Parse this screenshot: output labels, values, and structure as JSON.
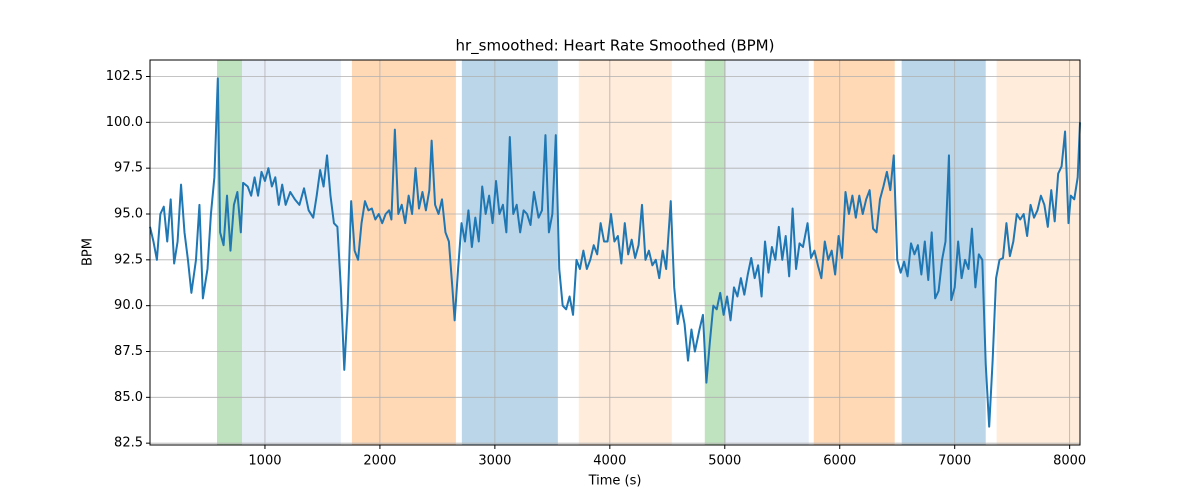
{
  "chart_data": {
    "type": "line",
    "title": "hr_smoothed: Heart Rate Smoothed (BPM)",
    "x_label": "Time (s)",
    "y_label": "BPM",
    "color": "#1f77b4",
    "grid": true,
    "xlim": [
      0,
      8090
    ],
    "ylim": [
      82.4,
      103.4
    ],
    "xticks": [
      1000,
      2000,
      3000,
      4000,
      5000,
      6000,
      7000,
      8000
    ],
    "yticks": [
      82.5,
      {
        "value": 85,
        "label": "85.0"
      },
      87.5,
      {
        "value": 90,
        "label": "90.0"
      },
      92.5,
      {
        "value": 95,
        "label": "95.0"
      },
      97.5,
      {
        "value": 100,
        "label": "100.0"
      },
      102.5
    ],
    "regions": [
      {
        "start": 583,
        "end": 800,
        "color": "#2ca02c",
        "alpha": 0.3
      },
      {
        "start": 800,
        "end": 1660,
        "color": "#aec7e8",
        "alpha": 0.3
      },
      {
        "start": 1757,
        "end": 2661,
        "color": "#ff7f0e",
        "alpha": 0.3
      },
      {
        "start": 2713,
        "end": 3548,
        "color": "#1f77b4",
        "alpha": 0.3
      },
      {
        "start": 3730,
        "end": 4539,
        "color": "#ff7f0e",
        "alpha": 0.15
      },
      {
        "start": 4826,
        "end": 5009,
        "color": "#2ca02c",
        "alpha": 0.3
      },
      {
        "start": 5009,
        "end": 5730,
        "color": "#aec7e8",
        "alpha": 0.3
      },
      {
        "start": 5774,
        "end": 6478,
        "color": "#ff7f0e",
        "alpha": 0.3
      },
      {
        "start": 6539,
        "end": 7270,
        "color": "#1f77b4",
        "alpha": 0.3
      },
      {
        "start": 7365,
        "end": 8090,
        "color": "#ff7f0e",
        "alpha": 0.15
      }
    ],
    "x": [
      0,
      30,
      60,
      90,
      120,
      150,
      180,
      210,
      240,
      270,
      300,
      330,
      360,
      400,
      430,
      460,
      500,
      530,
      560,
      590,
      610,
      640,
      670,
      700,
      730,
      760,
      790,
      810,
      850,
      880,
      910,
      940,
      970,
      1000,
      1030,
      1060,
      1090,
      1120,
      1150,
      1180,
      1220,
      1260,
      1300,
      1340,
      1380,
      1420,
      1450,
      1480,
      1510,
      1540,
      1570,
      1600,
      1630,
      1660,
      1690,
      1720,
      1750,
      1780,
      1810,
      1840,
      1870,
      1900,
      1930,
      1960,
      1990,
      2020,
      2050,
      2080,
      2100,
      2130,
      2160,
      2190,
      2220,
      2250,
      2280,
      2310,
      2340,
      2370,
      2400,
      2430,
      2450,
      2480,
      2510,
      2540,
      2570,
      2600,
      2630,
      2650,
      2680,
      2710,
      2740,
      2770,
      2800,
      2830,
      2860,
      2890,
      2920,
      2950,
      2980,
      3010,
      3040,
      3070,
      3100,
      3130,
      3160,
      3190,
      3220,
      3250,
      3280,
      3310,
      3340,
      3380,
      3410,
      3440,
      3470,
      3500,
      3530,
      3560,
      3590,
      3620,
      3650,
      3680,
      3710,
      3740,
      3770,
      3800,
      3830,
      3860,
      3890,
      3920,
      3950,
      3980,
      4010,
      4040,
      4070,
      4100,
      4130,
      4160,
      4190,
      4220,
      4250,
      4280,
      4310,
      4340,
      4370,
      4400,
      4430,
      4460,
      4490,
      4530,
      4560,
      4590,
      4620,
      4650,
      4680,
      4710,
      4740,
      4780,
      4810,
      4840,
      4870,
      4900,
      4930,
      4960,
      4990,
      5020,
      5050,
      5080,
      5110,
      5140,
      5170,
      5200,
      5230,
      5260,
      5290,
      5320,
      5350,
      5380,
      5410,
      5440,
      5470,
      5500,
      5530,
      5560,
      5590,
      5620,
      5650,
      5680,
      5720,
      5750,
      5780,
      5810,
      5840,
      5870,
      5900,
      5930,
      5960,
      5990,
      6020,
      6050,
      6080,
      6110,
      6140,
      6170,
      6200,
      6230,
      6260,
      6290,
      6320,
      6350,
      6380,
      6410,
      6440,
      6470,
      6500,
      6530,
      6560,
      6590,
      6620,
      6650,
      6680,
      6710,
      6740,
      6770,
      6800,
      6830,
      6860,
      6890,
      6920,
      6950,
      6970,
      7000,
      7030,
      7060,
      7090,
      7120,
      7150,
      7180,
      7210,
      7240,
      7270,
      7300,
      7330,
      7360,
      7390,
      7420,
      7450,
      7480,
      7510,
      7540,
      7570,
      7600,
      7630,
      7660,
      7690,
      7720,
      7750,
      7780,
      7810,
      7840,
      7870,
      7900,
      7930,
      7960,
      7990,
      8010,
      8040,
      8070,
      8090
    ],
    "values": [
      94.3,
      93.5,
      92.5,
      95,
      95.4,
      93.5,
      95.8,
      92.3,
      93.5,
      96.6,
      94,
      92.5,
      90.7,
      92.5,
      95.5,
      90.4,
      92,
      95,
      97,
      102.4,
      94,
      93.3,
      96,
      93,
      95.5,
      96.2,
      94,
      96.7,
      96.5,
      96,
      97,
      96,
      97.3,
      96.8,
      97.5,
      96.5,
      97,
      95.5,
      96.6,
      95.5,
      96.2,
      95.8,
      95.5,
      96.4,
      95.2,
      94.8,
      96,
      97.4,
      96.5,
      98.2,
      96,
      94.5,
      94.3,
      91,
      86.5,
      90,
      95.7,
      93,
      92.5,
      94.5,
      95.7,
      95.2,
      95.3,
      94.7,
      95,
      94.5,
      95,
      95.2,
      94.7,
      99.6,
      95,
      95.5,
      94.5,
      96,
      95,
      97.5,
      95.3,
      96.2,
      95.2,
      96.3,
      99,
      95.5,
      95,
      95.8,
      94,
      93.5,
      91,
      89.2,
      92,
      94.5,
      93.5,
      95.2,
      93.2,
      94.8,
      93.5,
      96.5,
      95,
      96,
      94.5,
      96.8,
      95,
      95.5,
      94,
      99.2,
      95,
      95.5,
      94,
      95.2,
      95,
      94.4,
      96.2,
      94.8,
      95.2,
      99.3,
      94,
      95,
      99.3,
      92,
      90,
      89.8,
      90.5,
      89.5,
      92.5,
      92,
      93,
      92,
      92.5,
      93.3,
      92.8,
      94.5,
      93.5,
      93.5,
      95,
      93.5,
      93.8,
      92.3,
      94.5,
      92.8,
      93.6,
      92.6,
      93.3,
      95.5,
      92.5,
      93,
      92.2,
      92.5,
      91.5,
      93,
      92,
      95.7,
      91,
      89,
      90,
      89,
      87,
      88.7,
      87.5,
      88.7,
      89.5,
      85.8,
      88,
      90,
      89.8,
      90.7,
      89.5,
      90.5,
      89.2,
      91,
      90.5,
      91.5,
      90.6,
      91.7,
      92.6,
      91.5,
      92.2,
      90.5,
      93.5,
      91.8,
      93.2,
      92.5,
      94.3,
      92.5,
      93.8,
      91.6,
      95.3,
      92,
      93.4,
      93.2,
      94.5,
      92.6,
      93,
      92.2,
      91.5,
      93.5,
      92.5,
      93,
      91.7,
      93.8,
      92.6,
      96.2,
      95,
      96,
      94.8,
      96,
      95,
      95.8,
      96.3,
      94.2,
      94,
      95.8,
      96.5,
      97.3,
      96.3,
      98.2,
      92.5,
      91.8,
      92.4,
      91.6,
      93.4,
      92.8,
      93.3,
      91.7,
      93.5,
      91.4,
      94,
      90.4,
      90.8,
      92.5,
      93.5,
      98.2,
      90.3,
      91,
      93.5,
      91.5,
      92.5,
      92,
      94.2,
      91,
      92.8,
      92.5,
      86.8,
      83.4,
      87,
      91.5,
      92.5,
      92.6,
      94.5,
      92.7,
      93.5,
      95,
      94.7,
      95,
      93.8,
      95.5,
      94.8,
      95.2,
      96,
      95.5,
      94.3,
      96.3,
      94.6,
      97.2,
      97.6,
      99.5,
      94.5,
      96,
      95.8,
      97,
      100
    ]
  }
}
